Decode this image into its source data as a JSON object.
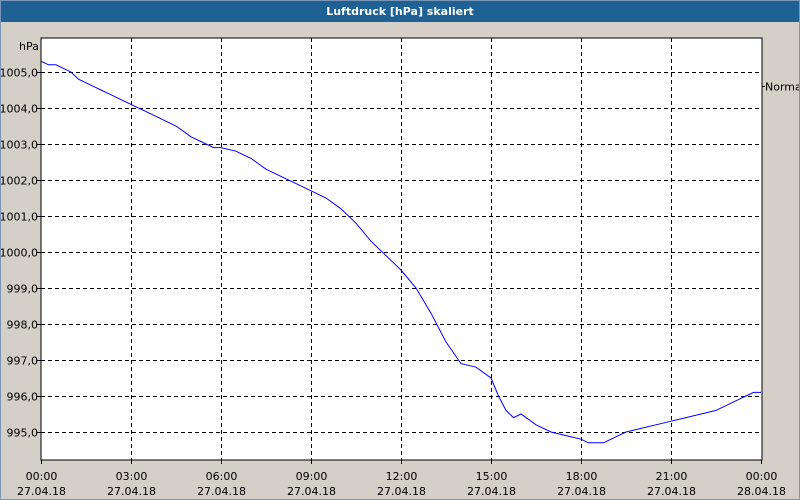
{
  "window": {
    "title": "Luftdruck [hPa] skaliert"
  },
  "colors": {
    "titlebar": "#1f6194",
    "background": "#d4d0c8",
    "plot_background": "#ffffff",
    "series": "#0000ff",
    "grid": "#000000"
  },
  "chart_data": {
    "type": "line",
    "title": "Luftdruck [hPa] skaliert",
    "ylabel": "hPa",
    "xlabel": "",
    "ylim": [
      994.4,
      1006.0
    ],
    "xlim": [
      0,
      24
    ],
    "grid": true,
    "grid_style": "dashed",
    "y_ticks": [
      {
        "value": 1005.0,
        "label": "1005,0"
      },
      {
        "value": 1004.0,
        "label": "1004,0"
      },
      {
        "value": 1003.0,
        "label": "1003,0"
      },
      {
        "value": 1002.0,
        "label": "1002,0"
      },
      {
        "value": 1001.0,
        "label": "1001,0"
      },
      {
        "value": 1000.0,
        "label": "1000,0"
      },
      {
        "value": 999.0,
        "label": "999,0"
      },
      {
        "value": 998.0,
        "label": "998,0"
      },
      {
        "value": 997.0,
        "label": "997,0"
      },
      {
        "value": 996.0,
        "label": "996,0"
      },
      {
        "value": 995.0,
        "label": "995,0"
      }
    ],
    "x_ticks": [
      {
        "value": 0,
        "time": "00:00",
        "date": "27.04.18"
      },
      {
        "value": 3,
        "time": "03:00",
        "date": "27.04.18"
      },
      {
        "value": 6,
        "time": "06:00",
        "date": "27.04.18"
      },
      {
        "value": 9,
        "time": "09:00",
        "date": "27.04.18"
      },
      {
        "value": 12,
        "time": "12:00",
        "date": "27.04.18"
      },
      {
        "value": 15,
        "time": "15:00",
        "date": "27.04.18"
      },
      {
        "value": 18,
        "time": "18:00",
        "date": "27.04.18"
      },
      {
        "value": 21,
        "time": "21:00",
        "date": "27.04.18"
      },
      {
        "value": 24,
        "time": "00:00",
        "date": "28.04.18"
      }
    ],
    "annotations": [
      {
        "label": "Normal",
        "y": 1004.6
      }
    ],
    "series": [
      {
        "x": [
          0,
          0.25,
          0.5,
          0.75,
          1.0,
          1.25,
          1.5,
          1.75,
          2.0,
          2.25,
          2.5,
          2.75,
          3.0,
          3.25,
          3.5,
          3.75,
          4.0,
          4.5,
          5.0,
          5.5,
          5.75,
          6.0,
          6.5,
          7.0,
          7.5,
          8.0,
          8.5,
          9.0,
          9.5,
          10.0,
          10.5,
          11.0,
          11.5,
          11.75,
          12.0,
          12.5,
          13.0,
          13.5,
          14.0,
          14.5,
          15.0,
          15.25,
          15.5,
          15.75,
          16.0,
          16.5,
          17.0,
          17.5,
          18.0,
          18.25,
          18.5,
          18.75,
          19.0,
          19.5,
          20.0,
          20.5,
          21.0,
          21.5,
          22.0,
          22.5,
          23.0,
          23.25,
          23.5,
          23.75,
          24.0
        ],
        "values": [
          1005.3,
          1005.2,
          1005.2,
          1005.1,
          1005.0,
          1004.8,
          1004.7,
          1004.6,
          1004.5,
          1004.4,
          1004.3,
          1004.2,
          1004.1,
          1004.0,
          1003.9,
          1003.8,
          1003.7,
          1003.5,
          1003.2,
          1003.0,
          1002.9,
          1002.9,
          1002.8,
          1002.6,
          1002.3,
          1002.1,
          1001.9,
          1001.7,
          1001.5,
          1001.2,
          1000.8,
          1000.3,
          999.9,
          999.7,
          999.5,
          999.0,
          998.3,
          997.5,
          996.9,
          996.8,
          996.5,
          996.0,
          995.6,
          995.4,
          995.5,
          995.2,
          995.0,
          994.9,
          994.8,
          994.7,
          994.7,
          994.7,
          994.8,
          995.0,
          995.1,
          995.2,
          995.3,
          995.4,
          995.5,
          995.6,
          995.8,
          995.9,
          996.0,
          996.1,
          996.1
        ]
      }
    ]
  }
}
